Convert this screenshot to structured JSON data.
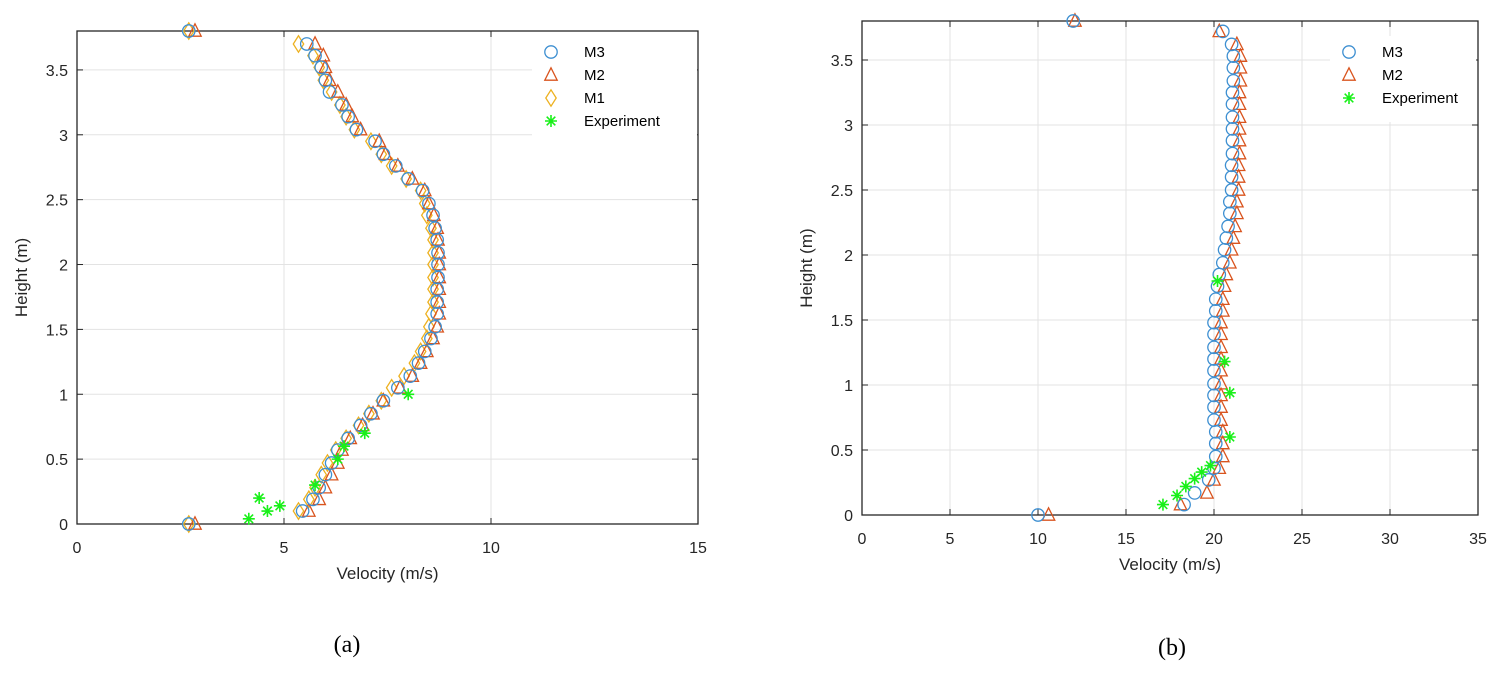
{
  "colors": {
    "M3": "#3d8fd1",
    "M2": "#d9541e",
    "M1": "#edb120",
    "Experiment": "#19f019",
    "grid": "#e3e3e3",
    "axis": "#262626"
  },
  "chart_data": [
    {
      "type": "scatter",
      "caption": "(a)",
      "xlabel": "Velocity (m/s)",
      "ylabel": "Height (m)",
      "xlim": [
        0,
        15
      ],
      "ylim": [
        0,
        3.8
      ],
      "xticks": [
        "0",
        "5",
        "10",
        "15"
      ],
      "xtick_values": [
        0,
        5,
        10,
        15
      ],
      "yticks": [
        "0",
        "0.5",
        "1",
        "1.5",
        "2",
        "2.5",
        "3",
        "3.5"
      ],
      "ytick_values": [
        0,
        0.5,
        1,
        1.5,
        2,
        2.5,
        3,
        3.5
      ],
      "grid": true,
      "legend_position": "top-right",
      "heights": [
        0.1,
        0.19,
        0.28,
        0.38,
        0.47,
        0.57,
        0.66,
        0.76,
        0.85,
        0.95,
        1.05,
        1.14,
        1.24,
        1.33,
        1.43,
        1.52,
        1.62,
        1.71,
        1.81,
        1.9,
        2.0,
        2.09,
        2.19,
        2.28,
        2.38,
        2.47,
        2.57,
        2.66,
        2.76,
        2.85,
        2.95,
        3.04,
        3.14,
        3.23,
        3.33,
        3.42,
        3.52,
        3.61,
        3.7
      ],
      "series": [
        {
          "name": "M3",
          "marker": "circle",
          "endpoints": [
            [
              2.7,
              0
            ],
            [
              2.7,
              3.8
            ]
          ],
          "values": [
            5.45,
            5.7,
            5.85,
            6.0,
            6.15,
            6.3,
            6.55,
            6.85,
            7.1,
            7.4,
            7.75,
            8.05,
            8.25,
            8.4,
            8.55,
            8.65,
            8.7,
            8.7,
            8.7,
            8.72,
            8.72,
            8.72,
            8.7,
            8.65,
            8.6,
            8.5,
            8.35,
            8.0,
            7.7,
            7.4,
            7.2,
            6.75,
            6.55,
            6.4,
            6.1,
            6.0,
            5.9,
            5.75,
            5.55
          ]
        },
        {
          "name": "M2",
          "marker": "triangle",
          "endpoints": [
            [
              2.85,
              0
            ],
            [
              2.85,
              3.8
            ]
          ],
          "values": [
            5.6,
            5.85,
            6.0,
            6.15,
            6.3,
            6.4,
            6.6,
            6.9,
            7.15,
            7.4,
            7.8,
            8.1,
            8.3,
            8.45,
            8.6,
            8.7,
            8.75,
            8.75,
            8.75,
            8.75,
            8.75,
            8.75,
            8.72,
            8.7,
            8.62,
            8.5,
            8.4,
            8.1,
            7.75,
            7.45,
            7.3,
            6.85,
            6.65,
            6.5,
            6.3,
            6.1,
            6.0,
            5.95,
            5.75
          ]
        },
        {
          "name": "M1",
          "marker": "diamond",
          "endpoints": [
            [
              2.7,
              0
            ],
            [
              2.7,
              3.8
            ]
          ],
          "values": [
            5.35,
            5.6,
            5.75,
            5.9,
            6.05,
            6.25,
            6.5,
            6.8,
            7.05,
            7.35,
            7.6,
            7.9,
            8.15,
            8.3,
            8.45,
            8.5,
            8.55,
            8.6,
            8.6,
            8.6,
            8.6,
            8.6,
            8.6,
            8.55,
            8.45,
            8.4,
            8.3,
            7.95,
            7.6,
            7.35,
            7.1,
            6.7,
            6.5,
            6.35,
            6.15,
            5.95,
            5.85,
            5.7,
            5.35
          ]
        },
        {
          "name": "Experiment",
          "marker": "asterisk",
          "points": [
            [
              4.15,
              0.04
            ],
            [
              4.6,
              0.1
            ],
            [
              4.9,
              0.14
            ],
            [
              4.4,
              0.2
            ],
            [
              5.75,
              0.3
            ],
            [
              6.3,
              0.5
            ],
            [
              6.45,
              0.6
            ],
            [
              6.95,
              0.7
            ],
            [
              8.0,
              1.0
            ]
          ]
        }
      ]
    },
    {
      "type": "scatter",
      "caption": "(b)",
      "xlabel": "Velocity (m/s)",
      "ylabel": "Height (m)",
      "xlim": [
        0,
        35
      ],
      "ylim": [
        0,
        3.8
      ],
      "xticks": [
        "0",
        "5",
        "10",
        "15",
        "20",
        "25",
        "30",
        "35"
      ],
      "xtick_values": [
        0,
        5,
        10,
        15,
        20,
        25,
        30,
        35
      ],
      "yticks": [
        "0",
        "0.5",
        "1",
        "1.5",
        "2",
        "2.5",
        "3",
        "3.5"
      ],
      "ytick_values": [
        0,
        0.5,
        1,
        1.5,
        2,
        2.5,
        3,
        3.5
      ],
      "grid": true,
      "legend_position": "top-right",
      "heights": [
        0.08,
        0.17,
        0.27,
        0.36,
        0.45,
        0.55,
        0.64,
        0.73,
        0.83,
        0.92,
        1.01,
        1.11,
        1.2,
        1.29,
        1.39,
        1.48,
        1.57,
        1.66,
        1.76,
        1.85,
        1.94,
        2.04,
        2.13,
        2.22,
        2.32,
        2.41,
        2.5,
        2.6,
        2.69,
        2.78,
        2.88,
        2.97,
        3.06,
        3.16,
        3.25,
        3.34,
        3.44,
        3.53,
        3.62,
        3.72
      ],
      "series": [
        {
          "name": "M3",
          "marker": "circle",
          "endpoints": [
            [
              10.0,
              0
            ],
            [
              12.0,
              3.8
            ]
          ],
          "values": [
            18.3,
            18.9,
            19.7,
            20.0,
            20.1,
            20.1,
            20.1,
            20.0,
            20.0,
            20.0,
            20.0,
            20.0,
            20.0,
            20.0,
            20.0,
            20.0,
            20.1,
            20.1,
            20.2,
            20.3,
            20.5,
            20.6,
            20.7,
            20.8,
            20.9,
            20.9,
            21.0,
            21.0,
            21.0,
            21.05,
            21.05,
            21.05,
            21.05,
            21.05,
            21.05,
            21.1,
            21.1,
            21.1,
            21.0,
            20.5
          ]
        },
        {
          "name": "M2",
          "marker": "triangle",
          "endpoints": [
            [
              10.6,
              0
            ],
            [
              12.1,
              3.8
            ]
          ],
          "values": [
            18.1,
            19.6,
            20.0,
            20.3,
            20.5,
            20.5,
            20.5,
            20.4,
            20.4,
            20.4,
            20.4,
            20.4,
            20.4,
            20.4,
            20.4,
            20.4,
            20.5,
            20.5,
            20.6,
            20.7,
            20.9,
            21.0,
            21.1,
            21.2,
            21.3,
            21.3,
            21.4,
            21.4,
            21.4,
            21.45,
            21.45,
            21.45,
            21.45,
            21.45,
            21.45,
            21.5,
            21.5,
            21.5,
            21.3,
            20.3
          ]
        },
        {
          "name": "Experiment",
          "marker": "asterisk",
          "points": [
            [
              17.1,
              0.08
            ],
            [
              17.9,
              0.15
            ],
            [
              18.4,
              0.22
            ],
            [
              18.9,
              0.28
            ],
            [
              19.3,
              0.33
            ],
            [
              19.8,
              0.38
            ],
            [
              20.9,
              0.6
            ],
            [
              20.9,
              0.94
            ],
            [
              20.6,
              1.18
            ],
            [
              20.2,
              1.8
            ]
          ]
        }
      ]
    }
  ]
}
